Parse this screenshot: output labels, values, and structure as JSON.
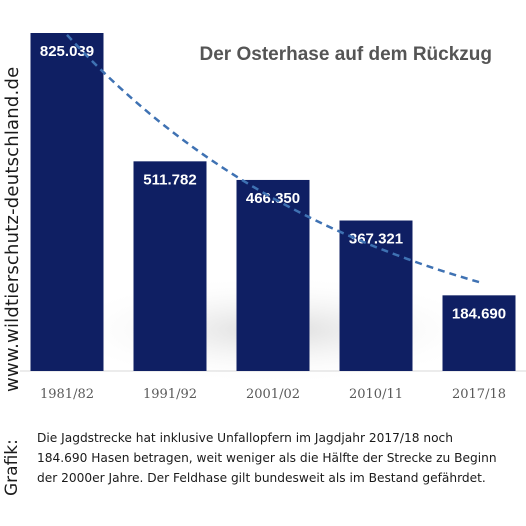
{
  "chart_data": {
    "type": "bar",
    "title": "Der Osterhase auf dem Rückzug",
    "categories": [
      "1981/82",
      "1991/92",
      "2001/02",
      "2010/11",
      "2017/18"
    ],
    "values": [
      825039,
      511782,
      466350,
      367321,
      184690
    ],
    "value_labels": [
      "825.039",
      "511.782",
      "466.350",
      "367.321",
      "184.690"
    ],
    "trendline": "dashed",
    "xlabel": "",
    "ylabel": "",
    "ylim": [
      0,
      825039
    ],
    "grid": false,
    "legend": "none",
    "colors": {
      "bar": "#0f1f63",
      "trendline": "#3f72b3",
      "title": "#555555",
      "value_label": "#ffffff",
      "tick_label": "#595959"
    }
  },
  "side_text": {
    "url": "www.wildtierschutz-deutschland.de",
    "grafik": "Grafik:"
  },
  "caption": "Die Jagdstrecke hat inklusive Unfallopfern im Jagdjahr 2017/18 noch 184.690 Hasen betragen, weit weniger als die Hälfte der Strecke zu Beginn der 2000er Jahre. Der Feldhase gilt bundesweit als im Bestand gefährdet."
}
